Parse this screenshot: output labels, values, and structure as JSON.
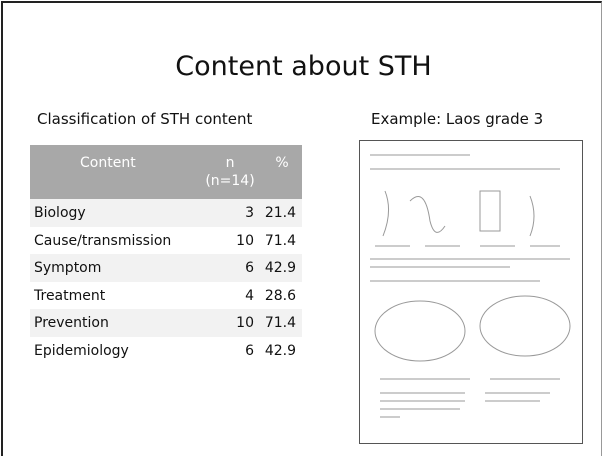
{
  "slide": {
    "title": "Content about STH",
    "left_heading": "Classification of  STH content",
    "right_heading": "Example: Laos  grade 3",
    "table": {
      "header": {
        "content": "Content",
        "n": "n",
        "n_note": "(n=14)",
        "percent": "%"
      },
      "rows": [
        [
          "Biology",
          3,
          21.4
        ],
        [
          "Cause/transmission",
          10,
          71.4
        ],
        [
          "Symptom",
          6,
          42.9
        ],
        [
          "Treatment",
          4,
          28.6
        ],
        [
          "Prevention",
          10,
          71.4
        ],
        [
          "Epidemiology",
          6,
          42.9
        ]
      ]
    }
  }
}
